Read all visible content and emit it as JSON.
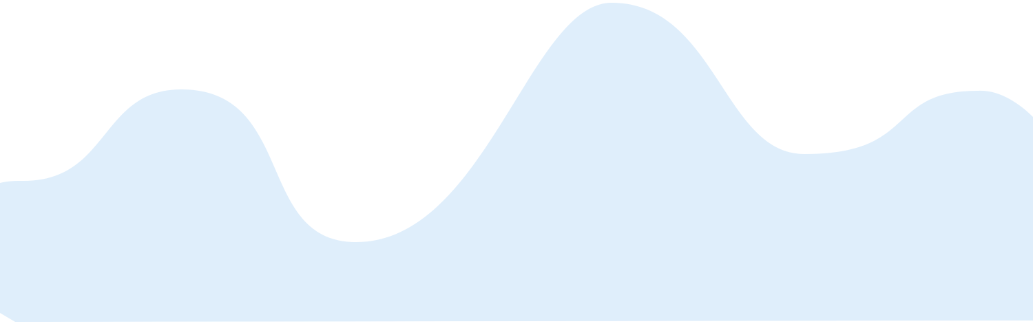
{
  "background": {
    "page_color": "#ffffff",
    "wave_color": "#dfeefb",
    "shape": "wave-blob"
  }
}
